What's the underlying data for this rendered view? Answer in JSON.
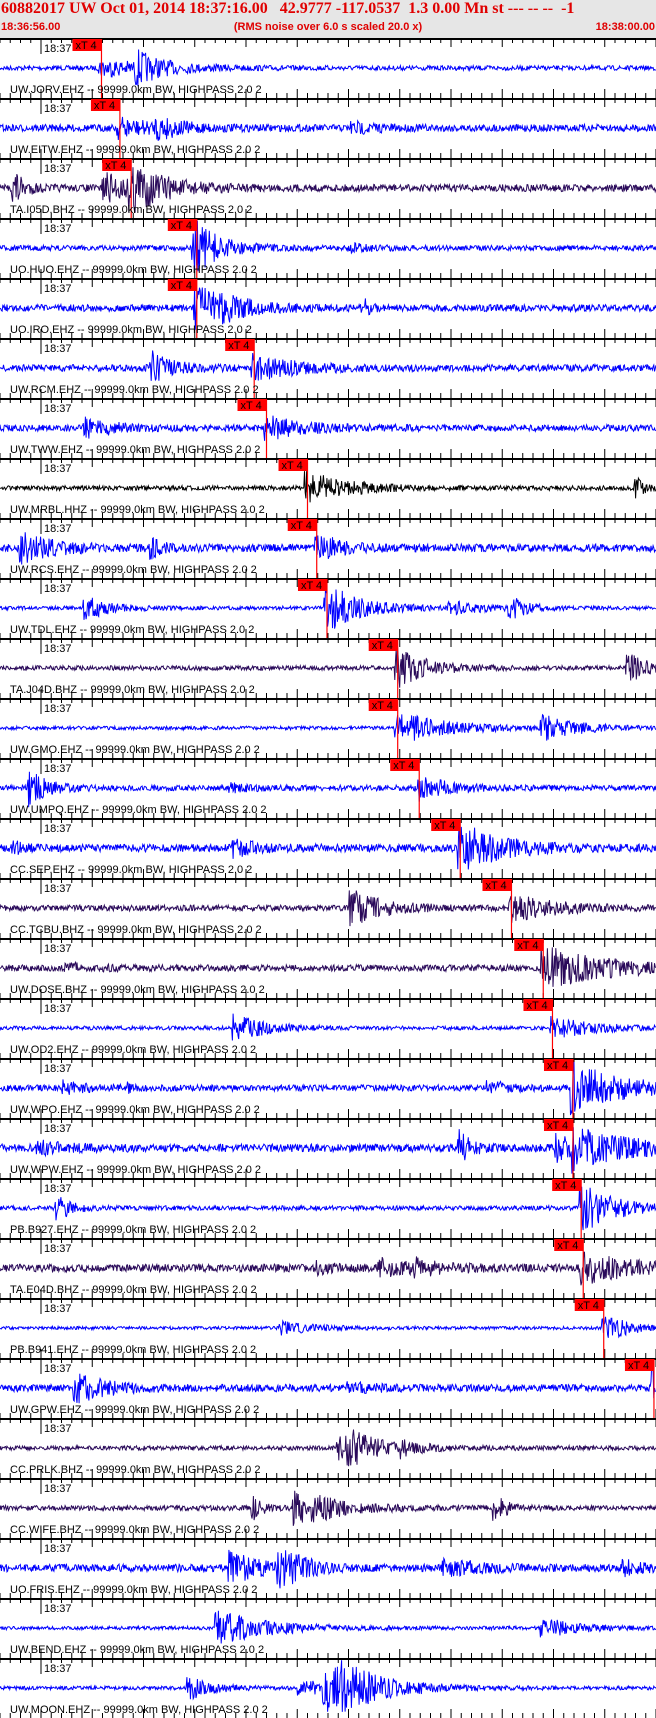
{
  "header": {
    "title": "60882017 UW Oct 01, 2014 18:37:16.00   42.9777 -117.0537  1.3 0.00 Mn st --- -- --  -1",
    "start_time": "18:36:56.00",
    "note": "(RMS noise over 6.0 s scaled 20.0 x)",
    "end_time": "18:38:00.00"
  },
  "chart_data": {
    "type": "seismogram",
    "time_start": "18:36:56.00",
    "time_end": "18:38:00.00",
    "minute_label": "18:37",
    "pick_label": "xT 4",
    "colors": {
      "blue": "#0000ff",
      "dark": "#2a0a5a",
      "black": "#000000",
      "pick": "#ff0000"
    },
    "traces": [
      {
        "label": "UW.JORV.EHZ -- 99999.0km BW, HIGHPASS  2.0  2",
        "color": "blue",
        "pick": "18:37:05.9"
      },
      {
        "label": "UW.EITW.EHZ -- 99999.0km BW, HIGHPASS  2.0  2",
        "color": "blue",
        "pick": "18:37:07.7"
      },
      {
        "label": "TA.I05D.BHZ -- 99999.0km BW, HIGHPASS  2.0  2",
        "color": "dark",
        "pick": "18:37:08.8"
      },
      {
        "label": "UO.HUO.EHZ -- 99999.0km BW, HIGHPASS  2.0  2",
        "color": "blue",
        "pick": "18:37:15.2"
      },
      {
        "label": "UO.IRO.EHZ -- 99999.0km BW, HIGHPASS  2.0  2",
        "color": "blue",
        "pick": "18:37:15.2"
      },
      {
        "label": "UW.RCM.EHZ -- 99999.0km BW, HIGHPASS  2.0  2",
        "color": "blue",
        "pick": "18:37:20.8"
      },
      {
        "label": "UW.TWW.EHZ -- 99999.0km BW, HIGHPASS  2.0  2",
        "color": "blue",
        "pick": "18:37:22.0"
      },
      {
        "label": "UW.MRBL.HHZ -- 99999.0km BW, HIGHPASS  2.0  2",
        "color": "black",
        "pick": "18:37:26.0"
      },
      {
        "label": "UW.RCS.EHZ -- 99999.0km BW, HIGHPASS  2.0  2",
        "color": "blue",
        "pick": "18:37:26.9"
      },
      {
        "label": "UW.TDL.EHZ -- 99999.0km BW, HIGHPASS  2.0  2",
        "color": "blue",
        "pick": "18:37:27.9"
      },
      {
        "label": "TA.J04D.BHZ -- 99999.0km BW, HIGHPASS  2.0  2",
        "color": "dark",
        "pick": "18:37:34.8"
      },
      {
        "label": "UW.GMO.EHZ -- 99999.0km BW, HIGHPASS  2.0  2",
        "color": "blue",
        "pick": "18:37:34.8"
      },
      {
        "label": "UW.UMPQ.EHZ -- 99999.0km BW, HIGHPASS  2.0  2",
        "color": "blue",
        "pick": "18:37:36.9"
      },
      {
        "label": "CC.SEP.EHZ -- 99999.0km BW, HIGHPASS  2.0  2",
        "color": "blue",
        "pick": "18:37:40.9"
      },
      {
        "label": "CC.TCBU.BHZ -- 99999.0km BW, HIGHPASS  2.0  2",
        "color": "dark",
        "pick": "18:37:45.9"
      },
      {
        "label": "UW.DOSE.BHZ -- 99999.0km BW, HIGHPASS  2.0  2",
        "color": "dark",
        "pick": "18:37:49.0"
      },
      {
        "label": "UW.OD2.EHZ -- 99999.0km BW, HIGHPASS  2.0  2",
        "color": "blue",
        "pick": "18:37:49.9"
      },
      {
        "label": "UW.WPO.EHZ -- 99999.0km BW, HIGHPASS  2.0  2",
        "color": "blue",
        "pick": "18:37:51.9"
      },
      {
        "label": "UW.WPW.EHZ -- 99999.0km BW, HIGHPASS  2.0  2",
        "color": "blue",
        "pick": "18:37:51.9"
      },
      {
        "label": "PB.B927.EHZ -- 99999.0km BW, HIGHPASS  2.0  2",
        "color": "blue",
        "pick": "18:37:52.7"
      },
      {
        "label": "TA.E04D.BHZ -- 99999.0km BW, HIGHPASS  2.0  2",
        "color": "dark",
        "pick": "18:37:52.9"
      },
      {
        "label": "PB.B941.EHZ -- 99999.0km BW, HIGHPASS  2.0  2",
        "color": "blue",
        "pick": "18:37:54.9"
      },
      {
        "label": "UW.GPW.EHZ -- 99999.0km BW, HIGHPASS  2.0  2",
        "color": "blue",
        "pick": "18:37:59.8"
      },
      {
        "label": "CC.PRLK.BHZ -- 99999.0km BW, HIGHPASS  2.0  2",
        "color": "dark",
        "pick": null
      },
      {
        "label": "CC.WIFE.BHZ -- 99999.0km BW, HIGHPASS  2.0  2",
        "color": "dark",
        "pick": null
      },
      {
        "label": "UO.FRIS.EHZ -- 99999.0km BW, HIGHPASS  2.0  2",
        "color": "blue",
        "pick": null
      },
      {
        "label": "UW.BEND.EHZ -- 99999.0km BW, HIGHPASS  2.0  2",
        "color": "blue",
        "pick": null
      },
      {
        "label": "UW.MOON.EHZ -- 99999.0km BW, HIGHPASS  2.0  2",
        "color": "blue",
        "pick": null
      }
    ]
  }
}
